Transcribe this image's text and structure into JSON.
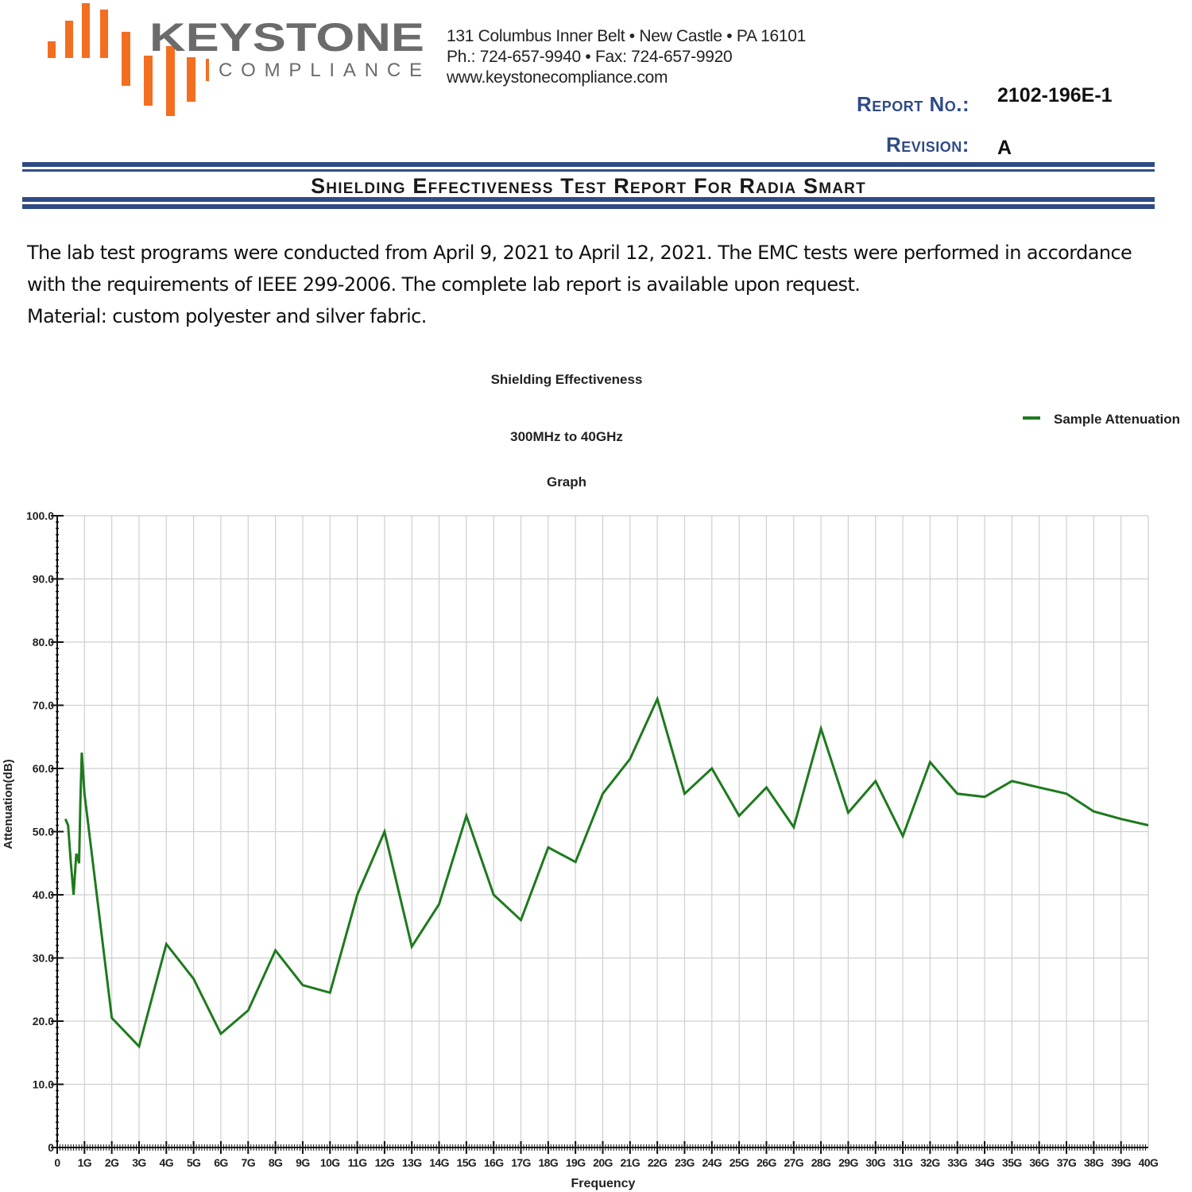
{
  "header": {
    "logo": {
      "name": "KEYSTONE",
      "sub": "COMPLIANCE",
      "colors": {
        "brand_gray": "#6b6b6b",
        "brand_orange": "#f26f21"
      }
    },
    "address_lines": [
      "131 Columbus Inner Belt • New Castle • PA 16101",
      "Ph.: 724-657-9940 • Fax: 724-657-9920",
      "www.keystonecompliance.com"
    ],
    "report_no_label": "Report No.:",
    "report_no_value": "2102-196E-1",
    "revision_label": "Revision:",
    "revision_value": "A",
    "title": "Shielding Effectiveness Test Report For Radia Smart",
    "accent_color": "#2f4b86"
  },
  "body": {
    "lines": [
      "The lab test programs were conducted from April 9, 2021 to April 12, 2021. The EMC tests were performed in accordance",
      "with the requirements of IEEE 299-2006. The complete lab report is available upon request.",
      "Material: custom polyester and silver fabric."
    ]
  },
  "chart_data": {
    "type": "line",
    "title": "Shielding Effectiveness",
    "subtitle": "300MHz to 40GHz",
    "subtitle2": "Graph",
    "xlabel": "Frequency",
    "ylabel": "Attenuation(dB)",
    "xlim": [
      0,
      40
    ],
    "ylim": [
      0,
      100
    ],
    "x_ticks": [
      "0",
      "1G",
      "2G",
      "3G",
      "4G",
      "5G",
      "6G",
      "7G",
      "8G",
      "9G",
      "10G",
      "11G",
      "12G",
      "13G",
      "14G",
      "15G",
      "16G",
      "17G",
      "18G",
      "19G",
      "20G",
      "21G",
      "22G",
      "23G",
      "24G",
      "25G",
      "26G",
      "27G",
      "28G",
      "29G",
      "30G",
      "31G",
      "32G",
      "33G",
      "34G",
      "35G",
      "36G",
      "37G",
      "38G",
      "39G",
      "40G"
    ],
    "y_ticks": [
      "0",
      "10.0",
      "20.0",
      "30.0",
      "40.0",
      "50.0",
      "60.0",
      "70.0",
      "80.0",
      "90.0",
      "100.0"
    ],
    "grid": true,
    "legend_position": "top-right",
    "series": [
      {
        "name": "Sample Attenuation",
        "color": "#1e7a1e",
        "x": [
          0.3,
          0.4,
          0.5,
          0.6,
          0.7,
          0.75,
          0.8,
          0.85,
          0.9,
          1.0,
          2.0,
          3.0,
          4.0,
          5.0,
          6.0,
          7.0,
          8.0,
          9.0,
          10.0,
          11.0,
          12.0,
          13.0,
          14.0,
          15.0,
          16.0,
          17.0,
          18.0,
          19.0,
          20.0,
          21.0,
          22.0,
          23.0,
          24.0,
          25.0,
          26.0,
          27.0,
          28.0,
          29.0,
          30.0,
          31.0,
          32.0,
          33.0,
          34.0,
          35.0,
          36.0,
          37.0,
          38.0,
          39.0,
          40.0
        ],
        "y": [
          52.0,
          51.0,
          45.0,
          40.0,
          46.5,
          46.0,
          45.0,
          55.0,
          62.5,
          56.0,
          20.5,
          16.0,
          32.2,
          26.7,
          18.0,
          21.7,
          31.2,
          25.7,
          24.5,
          40.0,
          50.0,
          31.8,
          38.5,
          52.5,
          40.0,
          36.0,
          47.5,
          45.2,
          56.0,
          61.5,
          71.0,
          56.0,
          60.0,
          52.5,
          57.0,
          50.7,
          66.3,
          53.0,
          58.0,
          49.3,
          61.0,
          56.0,
          55.5,
          58.0,
          57.0,
          56.0,
          53.2,
          52.0,
          51.0
        ]
      }
    ]
  }
}
